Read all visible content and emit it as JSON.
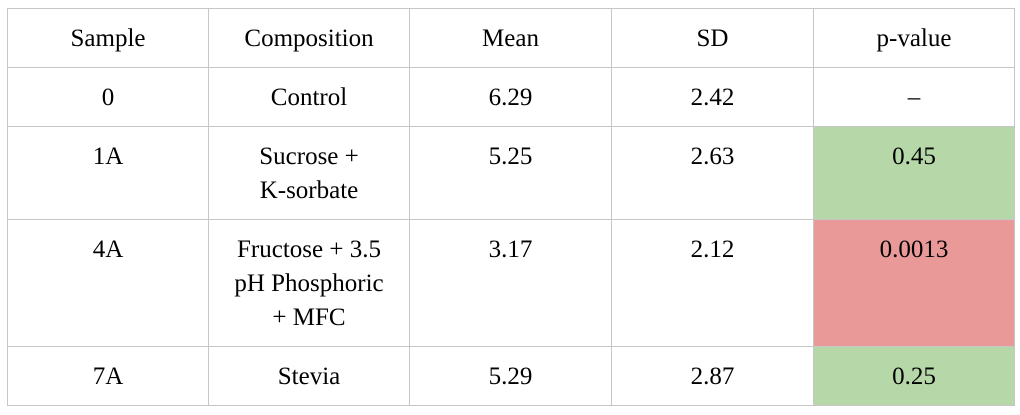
{
  "table": {
    "headers": [
      "Sample",
      "Composition",
      "Mean",
      "SD",
      "p-value"
    ],
    "rows": [
      {
        "sample": "0",
        "composition": [
          "Control"
        ],
        "mean": "6.29",
        "sd": "2.42",
        "p_value": "–",
        "p_color": "#ffffff"
      },
      {
        "sample": "1A",
        "composition": [
          "Sucrose +",
          "K-sorbate"
        ],
        "mean": "5.25",
        "sd": "2.63",
        "p_value": "0.45",
        "p_color": "#b6d7a8"
      },
      {
        "sample": "4A",
        "composition": [
          "Fructose + 3.5",
          "pH Phosphoric",
          "+ MFC"
        ],
        "mean": "3.17",
        "sd": "2.12",
        "p_value": "0.0013",
        "p_color": "#ea9999"
      },
      {
        "sample": "7A",
        "composition": [
          "Stevia"
        ],
        "mean": "5.29",
        "sd": "2.87",
        "p_value": "0.25",
        "p_color": "#b6d7a8"
      }
    ]
  }
}
